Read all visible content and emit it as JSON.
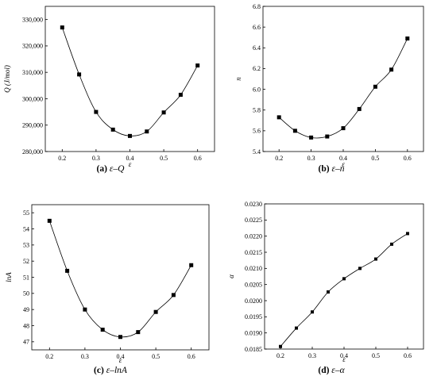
{
  "chart_data": [
    {
      "id": "a",
      "type": "scatter",
      "x": [
        0.2,
        0.25,
        0.3,
        0.35,
        0.4,
        0.45,
        0.5,
        0.55,
        0.6
      ],
      "y": [
        327000,
        309200,
        295000,
        288300,
        285900,
        287600,
        294800,
        301500,
        312600
      ],
      "xlabel": "ε",
      "ylabel": "Q (J/mol)",
      "xlim": [
        0.15,
        0.65
      ],
      "ylim": [
        280000,
        335000
      ],
      "xticks": [
        "0.2",
        "0.3",
        "0.4",
        "0.5",
        "0.6"
      ],
      "yticks": [
        "280,000",
        "290,000",
        "300,000",
        "310,000",
        "320,000",
        "330,000"
      ],
      "fit_curve": true,
      "grid": false,
      "caption_letter": "(a)",
      "caption_text": "ε–Q"
    },
    {
      "id": "b",
      "type": "scatter",
      "x": [
        0.2,
        0.25,
        0.3,
        0.35,
        0.4,
        0.45,
        0.5,
        0.55,
        0.6
      ],
      "y": [
        5.73,
        5.6,
        5.535,
        5.545,
        5.625,
        5.81,
        6.025,
        6.19,
        6.49
      ],
      "xlabel": "ε",
      "ylabel": "n",
      "xlim": [
        0.15,
        0.65
      ],
      "ylim": [
        5.4,
        6.8
      ],
      "xticks": [
        "0.2",
        "0.3",
        "0.4",
        "0.5",
        "0.6"
      ],
      "yticks": [
        "5.4",
        "5.6",
        "5.8",
        "6.0",
        "6.2",
        "6.4",
        "6.6",
        "6.8"
      ],
      "fit_curve": true,
      "grid": false,
      "caption_letter": "(b)",
      "caption_text": "ε–n"
    },
    {
      "id": "c",
      "type": "scatter",
      "x": [
        0.2,
        0.25,
        0.3,
        0.35,
        0.4,
        0.45,
        0.5,
        0.55,
        0.6
      ],
      "y": [
        54.5,
        51.4,
        49.0,
        47.75,
        47.3,
        47.6,
        48.85,
        49.9,
        51.75
      ],
      "xlabel": "ε",
      "ylabel": "lnA",
      "xlim": [
        0.15,
        0.65
      ],
      "ylim": [
        46.5,
        55.5
      ],
      "xticks": [
        "0.2",
        "0.3",
        "0.4",
        "0.5",
        "0.6"
      ],
      "yticks": [
        "47",
        "48",
        "49",
        "50",
        "51",
        "52",
        "53",
        "54",
        "55"
      ],
      "fit_curve": true,
      "grid": false,
      "caption_letter": "(c)",
      "caption_text": "ε–lnA"
    },
    {
      "id": "d",
      "type": "line",
      "x": [
        0.2,
        0.25,
        0.3,
        0.35,
        0.4,
        0.45,
        0.5,
        0.55,
        0.6
      ],
      "y": [
        0.01858,
        0.01915,
        0.01965,
        0.02027,
        0.02068,
        0.021,
        0.02129,
        0.02175,
        0.02208
      ],
      "xlabel": "ε",
      "ylabel": "α",
      "xlim": [
        0.15,
        0.65
      ],
      "ylim": [
        0.0185,
        0.023
      ],
      "xticks": [
        "0.2",
        "0.3",
        "0.4",
        "0.5",
        "0.6"
      ],
      "yticks": [
        "0.0185",
        "0.0190",
        "0.0195",
        "0.0200",
        "0.0205",
        "0.0210",
        "0.0215",
        "0.0220",
        "0.0225",
        "0.0230"
      ],
      "fit_curve": true,
      "grid": false,
      "caption_letter": "(d)",
      "caption_text": "ε–α"
    }
  ]
}
